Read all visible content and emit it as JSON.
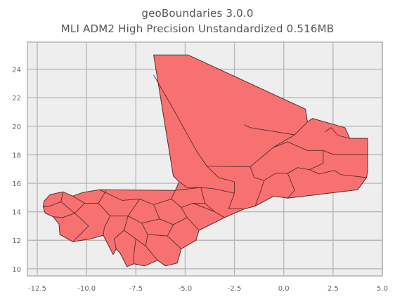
{
  "title": "geoBoundaries 3.0.0",
  "subtitle": "MLI ADM2 High Precision Unstandardized 0.516MB",
  "chart_data": {
    "type": "map",
    "title": "geoBoundaries 3.0.0",
    "subtitle": "MLI ADM2 High Precision Unstandardized 0.516MB",
    "xlim": [
      -13,
      5
    ],
    "ylim": [
      9.5,
      25.9
    ],
    "x_ticks": [
      -12.5,
      -10.0,
      -7.5,
      -5.0,
      -2.5,
      0.0,
      2.5,
      5.0
    ],
    "x_tick_labels": [
      "-12.5",
      "-10.0",
      "-7.5",
      "-5.0",
      "-2.5",
      "0.0",
      "2.5",
      "5.0"
    ],
    "y_ticks": [
      10,
      12,
      14,
      16,
      18,
      20,
      22,
      24
    ],
    "y_tick_labels": [
      "10",
      "12",
      "14",
      "16",
      "18",
      "20",
      "22",
      "24"
    ],
    "grid": true,
    "fill_color": "#f87171",
    "edge_color": "#5a2a2a",
    "background_color": "#eeeeee",
    "outline": [
      [
        -6.6,
        25.0
      ],
      [
        -4.85,
        25.0
      ],
      [
        1.1,
        21.2
      ],
      [
        1.2,
        20.3
      ],
      [
        1.45,
        20.55
      ],
      [
        3.1,
        19.9
      ],
      [
        3.35,
        19.15
      ],
      [
        4.25,
        19.15
      ],
      [
        4.25,
        16.85
      ],
      [
        4.2,
        16.4
      ],
      [
        3.75,
        15.55
      ],
      [
        0.2,
        14.95
      ],
      [
        -0.5,
        15.1
      ],
      [
        -1.45,
        14.4
      ],
      [
        -2.0,
        14.2
      ],
      [
        -3.0,
        13.6
      ],
      [
        -3.5,
        13.25
      ],
      [
        -4.3,
        12.7
      ],
      [
        -4.45,
        12.0
      ],
      [
        -5.2,
        11.4
      ],
      [
        -5.4,
        10.4
      ],
      [
        -6.0,
        10.2
      ],
      [
        -6.4,
        10.6
      ],
      [
        -7.05,
        10.2
      ],
      [
        -7.6,
        10.35
      ],
      [
        -7.95,
        10.15
      ],
      [
        -8.3,
        11.1
      ],
      [
        -8.5,
        11.4
      ],
      [
        -8.65,
        11.0
      ],
      [
        -9.15,
        12.35
      ],
      [
        -9.8,
        12.1
      ],
      [
        -10.7,
        11.9
      ],
      [
        -11.35,
        12.4
      ],
      [
        -11.4,
        13.15
      ],
      [
        -11.7,
        13.65
      ],
      [
        -12.1,
        13.9
      ],
      [
        -12.2,
        14.35
      ],
      [
        -12.15,
        14.75
      ],
      [
        -11.85,
        15.2
      ],
      [
        -11.2,
        15.4
      ],
      [
        -10.7,
        15.1
      ],
      [
        -10.2,
        15.35
      ],
      [
        -9.35,
        15.55
      ],
      [
        -5.5,
        15.5
      ],
      [
        -5.3,
        16.1
      ],
      [
        -5.6,
        16.5
      ],
      [
        -6.6,
        25.0
      ]
    ],
    "district_boundaries": [
      [
        [
          -6.6,
          23.6
        ],
        [
          -5.6,
          21.2
        ],
        [
          -4.4,
          18.2
        ],
        [
          -3.9,
          17.2
        ],
        [
          -3.3,
          16.4
        ]
      ],
      [
        [
          1.2,
          20.3
        ],
        [
          0.55,
          19.4
        ],
        [
          -0.55,
          18.5
        ]
      ],
      [
        [
          0.55,
          19.4
        ],
        [
          -1.7,
          19.9
        ],
        [
          -2.0,
          20.1
        ]
      ],
      [
        [
          -3.9,
          17.2
        ],
        [
          -1.7,
          17.15
        ],
        [
          -0.55,
          18.5
        ],
        [
          0.2,
          18.9
        ],
        [
          1.2,
          18.3
        ],
        [
          2.0,
          18.3
        ],
        [
          2.55,
          18.0
        ],
        [
          4.25,
          18.0
        ]
      ],
      [
        [
          3.35,
          19.15
        ],
        [
          2.75,
          19.35
        ],
        [
          2.4,
          19.9
        ],
        [
          2.1,
          19.6
        ]
      ],
      [
        [
          2.0,
          18.3
        ],
        [
          2.0,
          17.4
        ],
        [
          1.3,
          16.95
        ],
        [
          0.7,
          17.1
        ],
        [
          0.2,
          16.7
        ],
        [
          -0.4,
          16.7
        ],
        [
          -1.0,
          16.2
        ],
        [
          -1.2,
          15.35
        ],
        [
          -1.45,
          14.4
        ]
      ],
      [
        [
          1.3,
          16.95
        ],
        [
          1.8,
          16.65
        ],
        [
          2.55,
          16.9
        ],
        [
          2.9,
          16.6
        ],
        [
          4.2,
          16.4
        ]
      ],
      [
        [
          0.2,
          16.7
        ],
        [
          0.55,
          15.5
        ],
        [
          0.2,
          14.95
        ]
      ],
      [
        [
          -1.7,
          17.15
        ],
        [
          -1.5,
          16.4
        ],
        [
          -1.0,
          16.2
        ]
      ],
      [
        [
          -3.3,
          16.4
        ],
        [
          -2.5,
          16.1
        ],
        [
          -2.5,
          15.3
        ],
        [
          -2.8,
          14.2
        ],
        [
          -2.0,
          14.2
        ]
      ],
      [
        [
          -5.5,
          15.5
        ],
        [
          -4.2,
          15.7
        ],
        [
          -3.5,
          15.6
        ],
        [
          -2.5,
          15.3
        ]
      ],
      [
        [
          -5.3,
          16.1
        ],
        [
          -4.9,
          15.7
        ],
        [
          -4.2,
          15.7
        ]
      ],
      [
        [
          -4.2,
          15.7
        ],
        [
          -4.0,
          14.6
        ],
        [
          -3.5,
          14.0
        ],
        [
          -3.0,
          13.6
        ]
      ],
      [
        [
          -5.5,
          15.5
        ],
        [
          -5.7,
          14.9
        ],
        [
          -5.2,
          14.3
        ],
        [
          -4.6,
          14.6
        ],
        [
          -4.0,
          14.6
        ]
      ],
      [
        [
          -5.2,
          14.3
        ],
        [
          -4.9,
          13.6
        ],
        [
          -4.3,
          12.7
        ]
      ],
      [
        [
          -5.7,
          14.9
        ],
        [
          -6.6,
          14.5
        ],
        [
          -7.3,
          14.9
        ],
        [
          -8.2,
          14.8
        ],
        [
          -9.35,
          15.55
        ]
      ],
      [
        [
          -9.0,
          15.5
        ],
        [
          -9.4,
          14.6
        ],
        [
          -10.1,
          14.6
        ],
        [
          -10.7,
          15.1
        ]
      ],
      [
        [
          -10.1,
          14.6
        ],
        [
          -10.6,
          13.9
        ],
        [
          -11.2,
          13.6
        ],
        [
          -11.7,
          13.65
        ]
      ],
      [
        [
          -10.6,
          13.9
        ],
        [
          -9.9,
          13.0
        ],
        [
          -10.7,
          11.9
        ]
      ],
      [
        [
          -9.4,
          14.6
        ],
        [
          -8.8,
          13.7
        ],
        [
          -9.1,
          12.9
        ],
        [
          -9.15,
          12.35
        ]
      ],
      [
        [
          -8.8,
          13.7
        ],
        [
          -7.9,
          13.7
        ],
        [
          -7.3,
          14.9
        ]
      ],
      [
        [
          -7.9,
          13.7
        ],
        [
          -8.1,
          12.7
        ],
        [
          -8.6,
          12.1
        ],
        [
          -8.5,
          11.4
        ]
      ],
      [
        [
          -7.9,
          13.7
        ],
        [
          -7.2,
          13.2
        ],
        [
          -6.9,
          12.4
        ],
        [
          -7.0,
          11.6
        ],
        [
          -6.4,
          10.6
        ]
      ],
      [
        [
          -7.2,
          13.2
        ],
        [
          -6.3,
          13.5
        ],
        [
          -5.6,
          13.1
        ],
        [
          -4.9,
          13.6
        ]
      ],
      [
        [
          -6.6,
          14.5
        ],
        [
          -6.3,
          13.5
        ]
      ],
      [
        [
          -5.6,
          13.1
        ],
        [
          -5.9,
          12.3
        ],
        [
          -5.2,
          11.4
        ]
      ],
      [
        [
          -6.9,
          12.4
        ],
        [
          -5.9,
          12.3
        ]
      ],
      [
        [
          -8.1,
          12.7
        ],
        [
          -7.5,
          12.1
        ],
        [
          -7.0,
          11.6
        ]
      ],
      [
        [
          -7.5,
          12.1
        ],
        [
          -7.6,
          11.0
        ],
        [
          -7.6,
          10.35
        ]
      ],
      [
        [
          -11.2,
          15.4
        ],
        [
          -11.3,
          14.7
        ],
        [
          -11.85,
          14.4
        ],
        [
          -12.2,
          14.35
        ]
      ],
      [
        [
          -11.3,
          14.7
        ],
        [
          -10.6,
          13.9
        ]
      ],
      [
        [
          -4.6,
          14.6
        ],
        [
          -3.5,
          14.0
        ]
      ]
    ]
  }
}
